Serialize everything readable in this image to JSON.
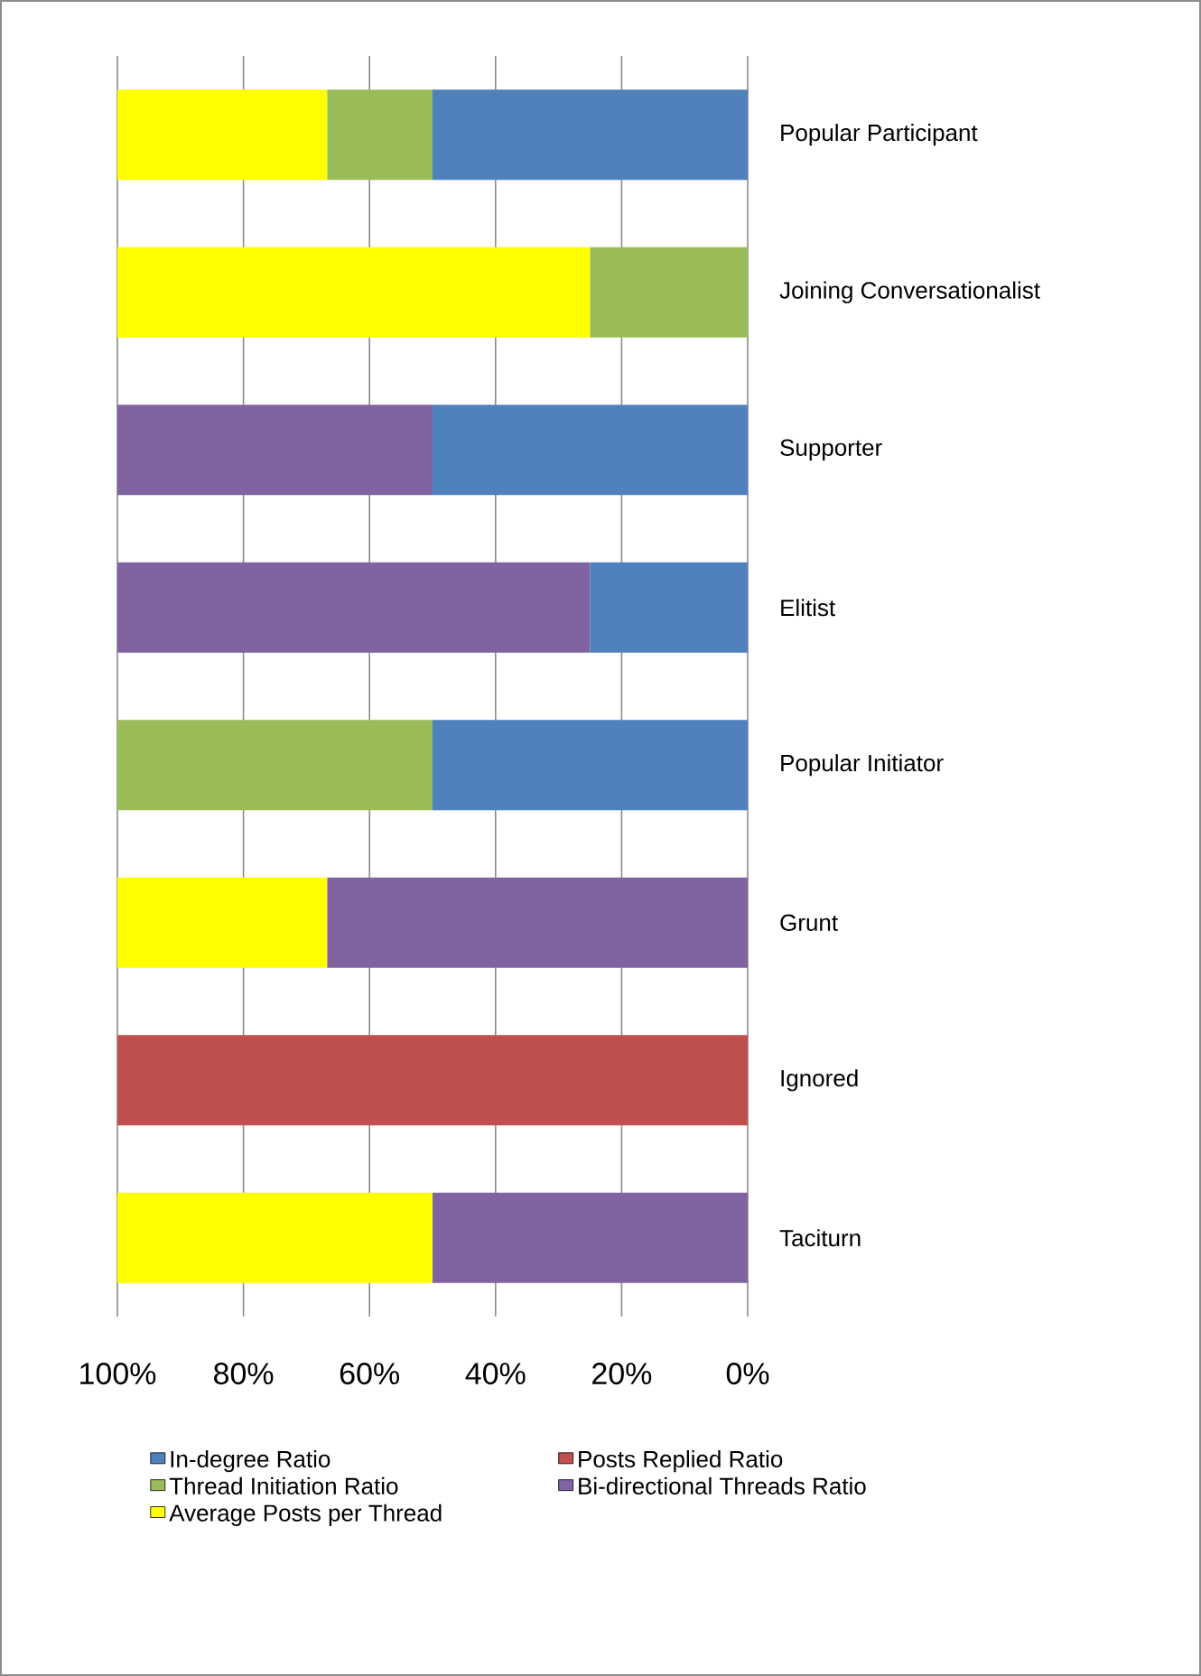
{
  "chart_data": {
    "type": "bar",
    "orientation": "horizontal",
    "stacked": true,
    "categories": [
      "Popular Participant",
      "Joining Conversationalist",
      "Supporter",
      "Elitist",
      "Popular Initiator",
      "Grunt",
      "Ignored",
      "Taciturn"
    ],
    "series": [
      {
        "name": "In-degree Ratio",
        "color": "#4f81bd",
        "values": [
          50,
          0,
          50,
          25,
          50,
          0,
          0,
          0
        ]
      },
      {
        "name": "Posts Replied Ratio",
        "color": "#c0504d",
        "values": [
          0,
          0,
          0,
          0,
          0,
          0,
          100,
          0
        ]
      },
      {
        "name": "Thread Initiation Ratio",
        "color": "#9bbb59",
        "values": [
          16.7,
          25,
          0,
          0,
          50,
          0,
          0,
          0
        ]
      },
      {
        "name": "Bi-directional Threads Ratio",
        "color": "#8064a2",
        "values": [
          0,
          0,
          50,
          75,
          0,
          66.7,
          0,
          50
        ]
      },
      {
        "name": "Average Posts per Thread",
        "color": "#ffff00",
        "values": [
          33.3,
          75,
          0,
          0,
          0,
          33.3,
          0,
          50
        ]
      }
    ],
    "xlim": [
      100,
      0
    ],
    "xticks": [
      {
        "value": 100,
        "label": "100%"
      },
      {
        "value": 80,
        "label": "80%"
      },
      {
        "value": 60,
        "label": "60%"
      },
      {
        "value": 40,
        "label": "40%"
      },
      {
        "value": 20,
        "label": "20%"
      },
      {
        "value": 0,
        "label": "0%"
      }
    ],
    "grid": "x",
    "legend": "bottom"
  }
}
